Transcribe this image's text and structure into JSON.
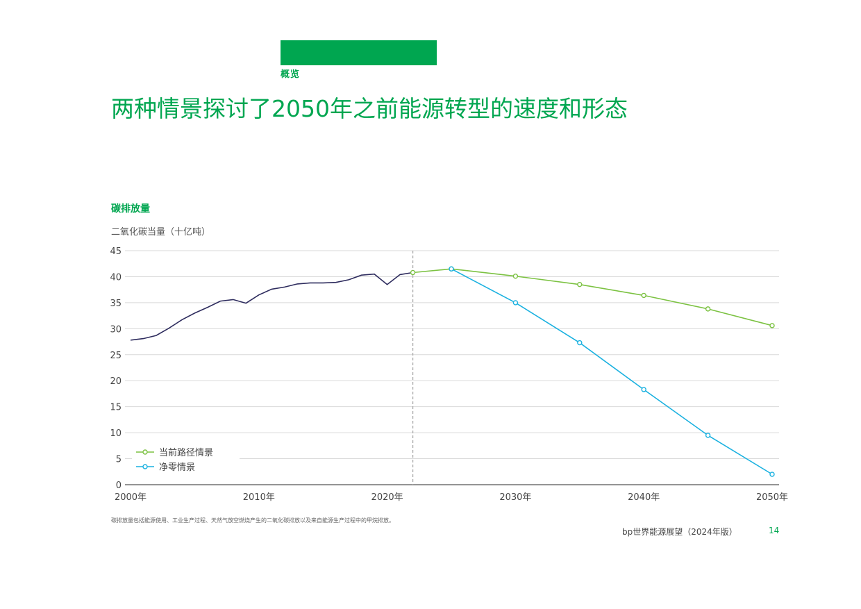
{
  "header": {
    "section": "概览",
    "title": "两种情景探讨了2050年之前能源转型的速度和形态"
  },
  "colors": {
    "brand_green": "#00a650",
    "history_line": "#2e2c5e",
    "current_trajectory": "#7cc242",
    "net_zero": "#1ab1e0",
    "divider": "#a8a8a8",
    "grid": "#d9d9d9",
    "axis": "#555555"
  },
  "chart_data": {
    "type": "line",
    "title": "碳排放量",
    "ylabel": "二氧化碳当量（十亿吨）",
    "xlabel": "",
    "xlim": [
      2000,
      2050
    ],
    "ylim": [
      0,
      45
    ],
    "x_ticks": [
      2000,
      2010,
      2020,
      2030,
      2040,
      2050
    ],
    "x_tick_labels": [
      "2000年",
      "2010年",
      "2020年",
      "2030年",
      "2040年",
      "2050年"
    ],
    "y_ticks": [
      0,
      5,
      10,
      15,
      20,
      25,
      30,
      35,
      40,
      45
    ],
    "grid": true,
    "divider_year": 2022,
    "legend_position": "bottom-left",
    "historical": {
      "x": [
        2000,
        2001,
        2002,
        2003,
        2004,
        2005,
        2006,
        2007,
        2008,
        2009,
        2010,
        2011,
        2012,
        2013,
        2014,
        2015,
        2016,
        2017,
        2018,
        2019,
        2020,
        2021,
        2022
      ],
      "y": [
        27.8,
        28.1,
        28.7,
        30.1,
        31.7,
        33.0,
        34.1,
        35.3,
        35.6,
        34.9,
        36.5,
        37.6,
        38.0,
        38.6,
        38.8,
        38.8,
        38.9,
        39.4,
        40.3,
        40.5,
        38.5,
        40.4,
        40.8
      ]
    },
    "series": [
      {
        "name": "当前路径情景",
        "x": [
          2022,
          2025,
          2030,
          2035,
          2040,
          2045,
          2050
        ],
        "y": [
          40.8,
          41.5,
          40.1,
          38.5,
          36.4,
          33.8,
          30.6
        ]
      },
      {
        "name": "净零情景",
        "x": [
          2025,
          2030,
          2035,
          2040,
          2045,
          2050
        ],
        "y": [
          41.5,
          35.0,
          27.3,
          18.3,
          9.5,
          2.0
        ]
      }
    ]
  },
  "footer": {
    "footnote": "碳排放量包括能源使用、工业生产过程、天然气放空燃烧产生的二氧化碳排放以及来自能源生产过程中的甲烷排放。",
    "publication": "bp世界能源展望（2024年版）",
    "page_number": "14"
  }
}
